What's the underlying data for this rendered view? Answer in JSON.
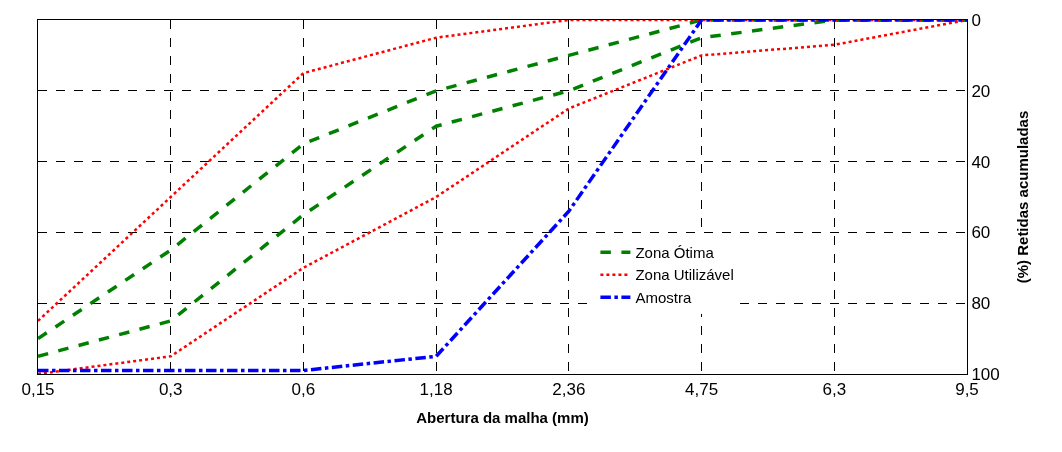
{
  "chart_data": {
    "type": "line",
    "xlabel": "Abertura da malha (mm)",
    "ylabel": "(%) Retidas acumuladas",
    "categories": [
      "0,15",
      "0,3",
      "0,6",
      "1,18",
      "2,36",
      "4,75",
      "6,3",
      "9,5"
    ],
    "ylim": [
      100,
      0
    ],
    "yticks": [
      0,
      20,
      40,
      60,
      80,
      100
    ],
    "grid": true,
    "legend": "bottom right",
    "marker": "none",
    "series": [
      {
        "name": "Zona Ótima",
        "color": "#008000",
        "line_style": "dashed",
        "values": [
          90,
          65,
          35,
          20,
          10,
          0,
          0,
          0
        ]
      },
      {
        "color": "#008000",
        "line_style": "dashed",
        "values": [
          95,
          85,
          55,
          30,
          20,
          5,
          0,
          0
        ]
      },
      {
        "name": "Zona Utilizável",
        "color": "#ff0000",
        "line_style": "dotted",
        "values": [
          85,
          50,
          15,
          5,
          0,
          0,
          0,
          0
        ]
      },
      {
        "color": "#ff0000",
        "line_style": "dotted",
        "values": [
          100,
          95,
          70,
          50,
          25,
          10,
          7,
          0
        ]
      },
      {
        "name": "Amostra",
        "color": "#0000ff",
        "line_style": "dashdot",
        "values": [
          99,
          99,
          99,
          95,
          54,
          0,
          0,
          0
        ]
      }
    ]
  }
}
